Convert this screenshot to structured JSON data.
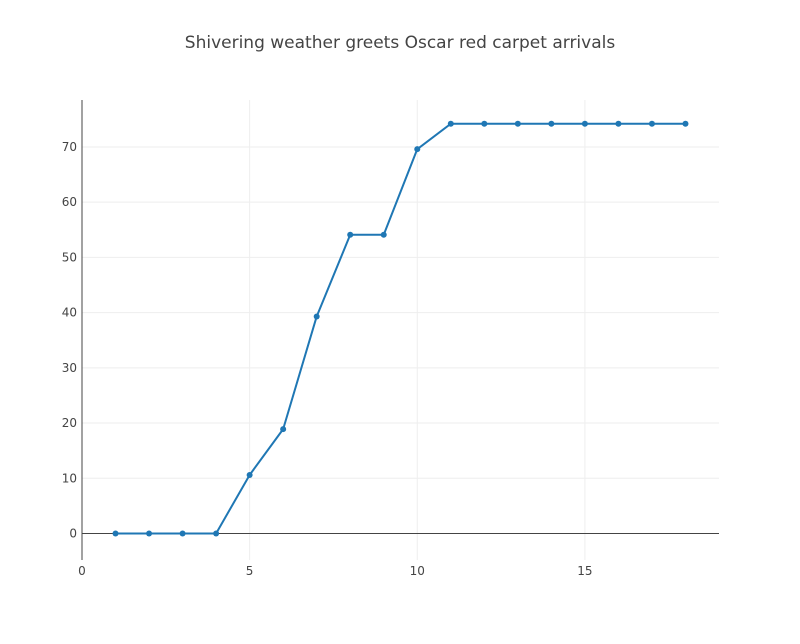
{
  "chart_data": {
    "type": "line",
    "title": "Shivering weather greets Oscar red carpet arrivals",
    "xlabel": "",
    "ylabel": "",
    "xlim": [
      0,
      19
    ],
    "ylim": [
      -4.8,
      78.5
    ],
    "x_ticks": [
      0,
      5,
      10,
      15
    ],
    "y_ticks": [
      0,
      10,
      20,
      30,
      40,
      50,
      60,
      70
    ],
    "grid": true,
    "legend": "none",
    "colors": {
      "line": "#1f77b4",
      "grid": "#eeeeee",
      "axis": "#444444",
      "tick_label": "#444444"
    },
    "series": [
      {
        "x": [
          1,
          2,
          3,
          4,
          5,
          6,
          7,
          8,
          9,
          10,
          11,
          12,
          13,
          14,
          15,
          16,
          17,
          18
        ],
        "y": [
          0,
          0,
          0,
          0,
          10.6,
          18.9,
          39.3,
          54.1,
          54.1,
          69.6,
          74.2,
          74.2,
          74.2,
          74.2,
          74.2,
          74.2,
          74.2,
          74.2
        ]
      }
    ]
  }
}
